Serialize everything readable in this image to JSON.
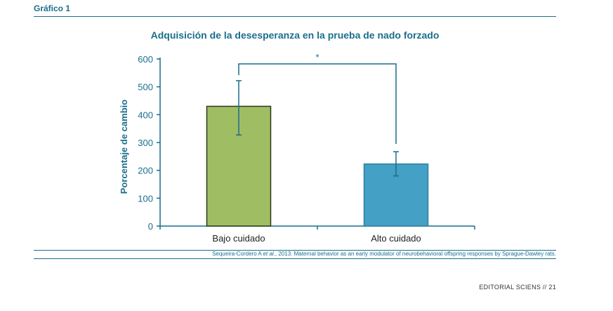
{
  "figure_label": "Gráfico 1",
  "source_prefix": "Sequeira-Cordero A ",
  "source_etal": "et al",
  "source_suffix": "., 2013. Maternal behavior as an early modulator of neurobehavioral offspring responses by Sprague-Dawley rats.",
  "footer": "EDITORIAL SCIENS // 21",
  "chart_data": {
    "type": "bar",
    "title": "Adquisición de la desesperanza en la prueba de nado forzado",
    "xlabel": "",
    "ylabel": "Porcentaje de cambio",
    "ylim": [
      0,
      600
    ],
    "yticks": [
      0,
      100,
      200,
      300,
      400,
      500,
      600
    ],
    "categories": [
      "Bajo cuidado",
      "Alto cuidado"
    ],
    "values": [
      430,
      223
    ],
    "error_low": [
      327,
      180
    ],
    "error_high": [
      522,
      267
    ],
    "bar_colors": [
      "#9fbd63",
      "#44a0c4"
    ],
    "bar_edge_colors": [
      "#2b3a1a",
      "#2f7fa3"
    ],
    "significance_label": "*",
    "axis_color": "#1a6e8c"
  }
}
